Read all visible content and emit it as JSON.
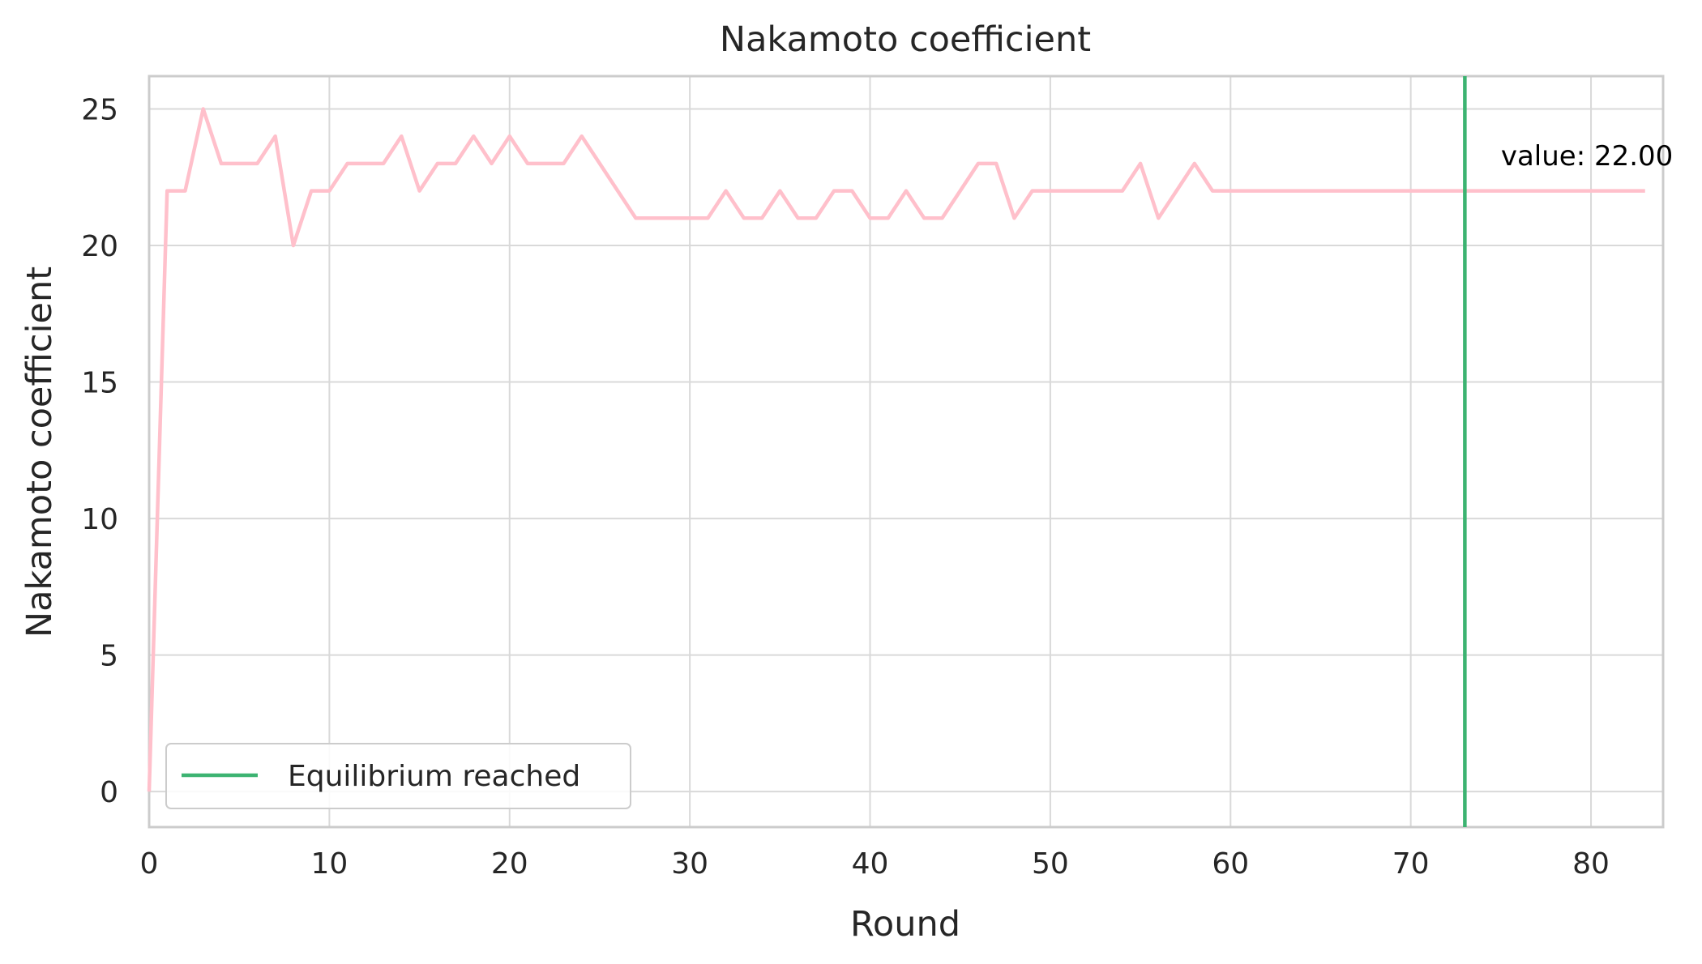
{
  "chart_data": {
    "type": "line",
    "title": "Nakamoto coefficient",
    "xlabel": "Round",
    "ylabel": "Nakamoto coefficient",
    "xlim": [
      0,
      84
    ],
    "ylim": [
      -1.3,
      26.2
    ],
    "xticks": [
      0,
      10,
      20,
      30,
      40,
      50,
      60,
      70,
      80
    ],
    "yticks": [
      0,
      5,
      10,
      15,
      20,
      25
    ],
    "grid": true,
    "series": [
      {
        "color": "#ffc0cb",
        "x": [
          0,
          1,
          2,
          3,
          4,
          5,
          6,
          7,
          8,
          9,
          10,
          11,
          12,
          13,
          14,
          15,
          16,
          17,
          18,
          19,
          20,
          21,
          22,
          23,
          24,
          25,
          26,
          27,
          28,
          29,
          30,
          31,
          32,
          33,
          34,
          35,
          36,
          37,
          38,
          39,
          40,
          41,
          42,
          43,
          44,
          45,
          46,
          47,
          48,
          49,
          50,
          51,
          52,
          53,
          54,
          55,
          56,
          57,
          58,
          59,
          60,
          61,
          62,
          63,
          64,
          65,
          66,
          67,
          68,
          69,
          70,
          71,
          72,
          73,
          74,
          75,
          76,
          77,
          78,
          79,
          80,
          81,
          82,
          83
        ],
        "y": [
          0,
          22,
          22,
          25,
          23,
          23,
          23,
          24,
          20,
          22,
          22,
          23,
          23,
          23,
          24,
          22,
          23,
          23,
          24,
          23,
          24,
          23,
          23,
          23,
          24,
          23,
          22,
          21,
          21,
          21,
          21,
          21,
          22,
          21,
          21,
          22,
          21,
          21,
          22,
          22,
          21,
          21,
          22,
          21,
          21,
          22,
          23,
          23,
          21,
          22,
          22,
          22,
          22,
          22,
          22,
          23,
          21,
          22,
          23,
          22,
          22,
          22,
          22,
          22,
          22,
          22,
          22,
          22,
          22,
          22,
          22,
          22,
          22,
          22,
          22,
          22,
          22,
          22,
          22,
          22,
          22,
          22,
          22,
          22
        ]
      }
    ],
    "vline": {
      "x": 73,
      "color": "#3cb371",
      "label": "Equilibrium reached"
    },
    "annotation": {
      "text": "value: 22.00",
      "x": 75,
      "y": 23
    },
    "legend": {
      "placement": "lower-left",
      "entries": [
        "Equilibrium reached"
      ]
    }
  }
}
